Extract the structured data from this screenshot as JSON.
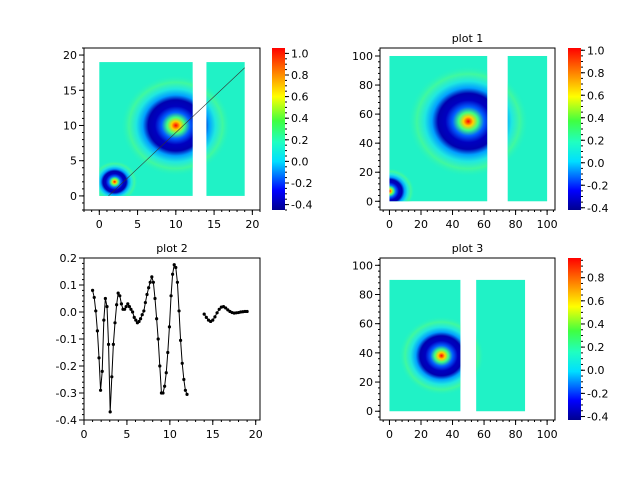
{
  "chart_data": [
    {
      "type": "heatmap",
      "title": "",
      "xlim": [
        -2,
        21
      ],
      "ylim": [
        -2,
        21
      ],
      "xticks": [
        "0",
        "5",
        "10",
        "15",
        "20"
      ],
      "xtick_values": [
        0,
        5,
        10,
        15,
        20
      ],
      "yticks": [
        "0",
        "5",
        "10",
        "15",
        "20"
      ],
      "ytick_values": [
        0,
        5,
        10,
        15,
        20
      ],
      "regions": [
        {
          "x": [
            0,
            12.2
          ],
          "y": [
            0,
            19
          ]
        },
        {
          "x": [
            14,
            19
          ],
          "y": [
            0,
            19
          ]
        }
      ],
      "peaks": [
        {
          "x": 10,
          "y": 10,
          "size": 4.5
        },
        {
          "x": 2,
          "y": 2,
          "size": 1.9
        }
      ],
      "overlay_line": {
        "x": [
          1.2,
          19
        ],
        "y": [
          0,
          18.2
        ]
      },
      "colorbar": {
        "range": [
          -0.45,
          1.05
        ],
        "ticks": [
          "-0.4",
          "-0.2",
          "0.0",
          "0.2",
          "0.4",
          "0.6",
          "0.8",
          "1.0"
        ],
        "tick_values": [
          -0.4,
          -0.2,
          0,
          0.2,
          0.4,
          0.6,
          0.8,
          1.0
        ]
      }
    },
    {
      "type": "heatmap",
      "title": "plot 1",
      "xlim": [
        -6,
        105
      ],
      "ylim": [
        -6,
        105.5
      ],
      "xticks": [
        "0",
        "20",
        "40",
        "60",
        "80",
        "100"
      ],
      "xtick_values": [
        0,
        20,
        40,
        60,
        80,
        100
      ],
      "yticks": [
        "0",
        "20",
        "40",
        "60",
        "80",
        "100"
      ],
      "ytick_values": [
        0,
        20,
        40,
        60,
        80,
        100
      ],
      "regions": [
        {
          "x": [
            0,
            62
          ],
          "y": [
            0,
            100
          ]
        },
        {
          "x": [
            75,
            100
          ],
          "y": [
            0,
            100
          ]
        }
      ],
      "peaks": [
        {
          "x": 50,
          "y": 55,
          "size": 24
        },
        {
          "x": 0,
          "y": 7,
          "size": 10
        }
      ],
      "colorbar": {
        "range": [
          -0.42,
          1.02
        ],
        "ticks": [
          "-0.4",
          "-0.2",
          "0.0",
          "0.2",
          "0.4",
          "0.6",
          "0.8",
          "1.0"
        ],
        "tick_values": [
          -0.4,
          -0.2,
          0,
          0.2,
          0.4,
          0.6,
          0.8,
          1.0
        ]
      }
    },
    {
      "type": "line",
      "title": "plot 2",
      "xlim": [
        0,
        20.5
      ],
      "ylim": [
        -0.4,
        0.2
      ],
      "xticks": [
        "0",
        "5",
        "10",
        "15",
        "20"
      ],
      "xtick_values": [
        0,
        5,
        10,
        15,
        20
      ],
      "yticks": [
        "-0.4",
        "-0.3",
        "-0.2",
        "-0.1",
        "0.0",
        "0.1",
        "0.2"
      ],
      "ytick_values": [
        -0.4,
        -0.3,
        -0.2,
        -0.1,
        0,
        0.1,
        0.2
      ],
      "series": [
        {
          "x": [
            1.0,
            1.19,
            1.37,
            1.56,
            1.75,
            1.93,
            2.12,
            2.31,
            2.49,
            2.68,
            2.86,
            3.05,
            3.24,
            3.42,
            3.61,
            3.8,
            3.98,
            4.17,
            4.36,
            4.54,
            4.73,
            4.91,
            5.1,
            5.29,
            5.47,
            5.66,
            5.85,
            6.03,
            6.22,
            6.41,
            6.59,
            6.78,
            6.97,
            7.15,
            7.34,
            7.53,
            7.71,
            7.9,
            8.08,
            8.27,
            8.46,
            8.64,
            8.83,
            9.02,
            9.2,
            9.39,
            9.58,
            9.76,
            9.95,
            10.14,
            10.32,
            10.51,
            10.69,
            10.88,
            11.07,
            11.25,
            11.44,
            11.63,
            11.81,
            12.0
          ],
          "y": [
            0.08,
            0.054,
            0.004,
            -0.07,
            -0.17,
            -0.29,
            -0.22,
            -0.03,
            0.05,
            0.02,
            -0.12,
            -0.37,
            -0.24,
            -0.12,
            -0.04,
            0.027,
            0.07,
            0.06,
            0.03,
            0.01,
            0.01,
            0.02,
            0.03,
            0.02,
            0.01,
            0,
            -0.02,
            -0.03,
            -0.04,
            -0.035,
            -0.025,
            -0.01,
            0.004,
            0.035,
            0.065,
            0.09,
            0.11,
            0.13,
            0.11,
            0.05,
            -0.025,
            -0.1,
            -0.2,
            -0.3,
            -0.3,
            -0.275,
            -0.225,
            -0.15,
            -0.055,
            0.06,
            0.14,
            0.175,
            0.165,
            0.11,
            0.004,
            -0.105,
            -0.19,
            -0.25,
            -0.29,
            -0.305
          ]
        },
        {
          "x": [
            14,
            14.25,
            14.5,
            14.75,
            15,
            15.25,
            15.5,
            15.75,
            16,
            16.25,
            16.5,
            16.75,
            17,
            17.25,
            17.5,
            17.75,
            18,
            18.25,
            18.5,
            18.75,
            19
          ],
          "y": [
            -0.008,
            -0.02,
            -0.03,
            -0.035,
            -0.03,
            -0.018,
            -0.003,
            0.01,
            0.018,
            0.02,
            0.015,
            0.008,
            0.002,
            -0.002,
            -0.004,
            -0.003,
            -0.002,
            0,
            0.001,
            0.002,
            0.002
          ]
        }
      ],
      "color": "#000000"
    },
    {
      "type": "heatmap",
      "title": "plot 3",
      "xlim": [
        -6,
        105
      ],
      "ylim": [
        -6,
        105
      ],
      "xticks": [
        "0",
        "20",
        "40",
        "60",
        "80",
        "100"
      ],
      "xtick_values": [
        0,
        20,
        40,
        60,
        80,
        100
      ],
      "yticks": [
        "0",
        "20",
        "40",
        "60",
        "80",
        "100"
      ],
      "ytick_values": [
        0,
        20,
        40,
        60,
        80,
        100
      ],
      "regions": [
        {
          "x": [
            0,
            45
          ],
          "y": [
            0,
            90
          ]
        },
        {
          "x": [
            55,
            86
          ],
          "y": [
            0,
            90
          ]
        }
      ],
      "peaks": [
        {
          "x": 33,
          "y": 38,
          "size": 17
        }
      ],
      "colorbar": {
        "range": [
          -0.43,
          0.97
        ],
        "ticks": [
          "-0.4",
          "-0.2",
          "0.0",
          "0.2",
          "0.4",
          "0.6",
          "0.8"
        ],
        "tick_values": [
          -0.4,
          -0.2,
          0,
          0.2,
          0.4,
          0.6,
          0.8
        ]
      }
    }
  ],
  "colormap": "jet",
  "background_color": "#20f2c6"
}
